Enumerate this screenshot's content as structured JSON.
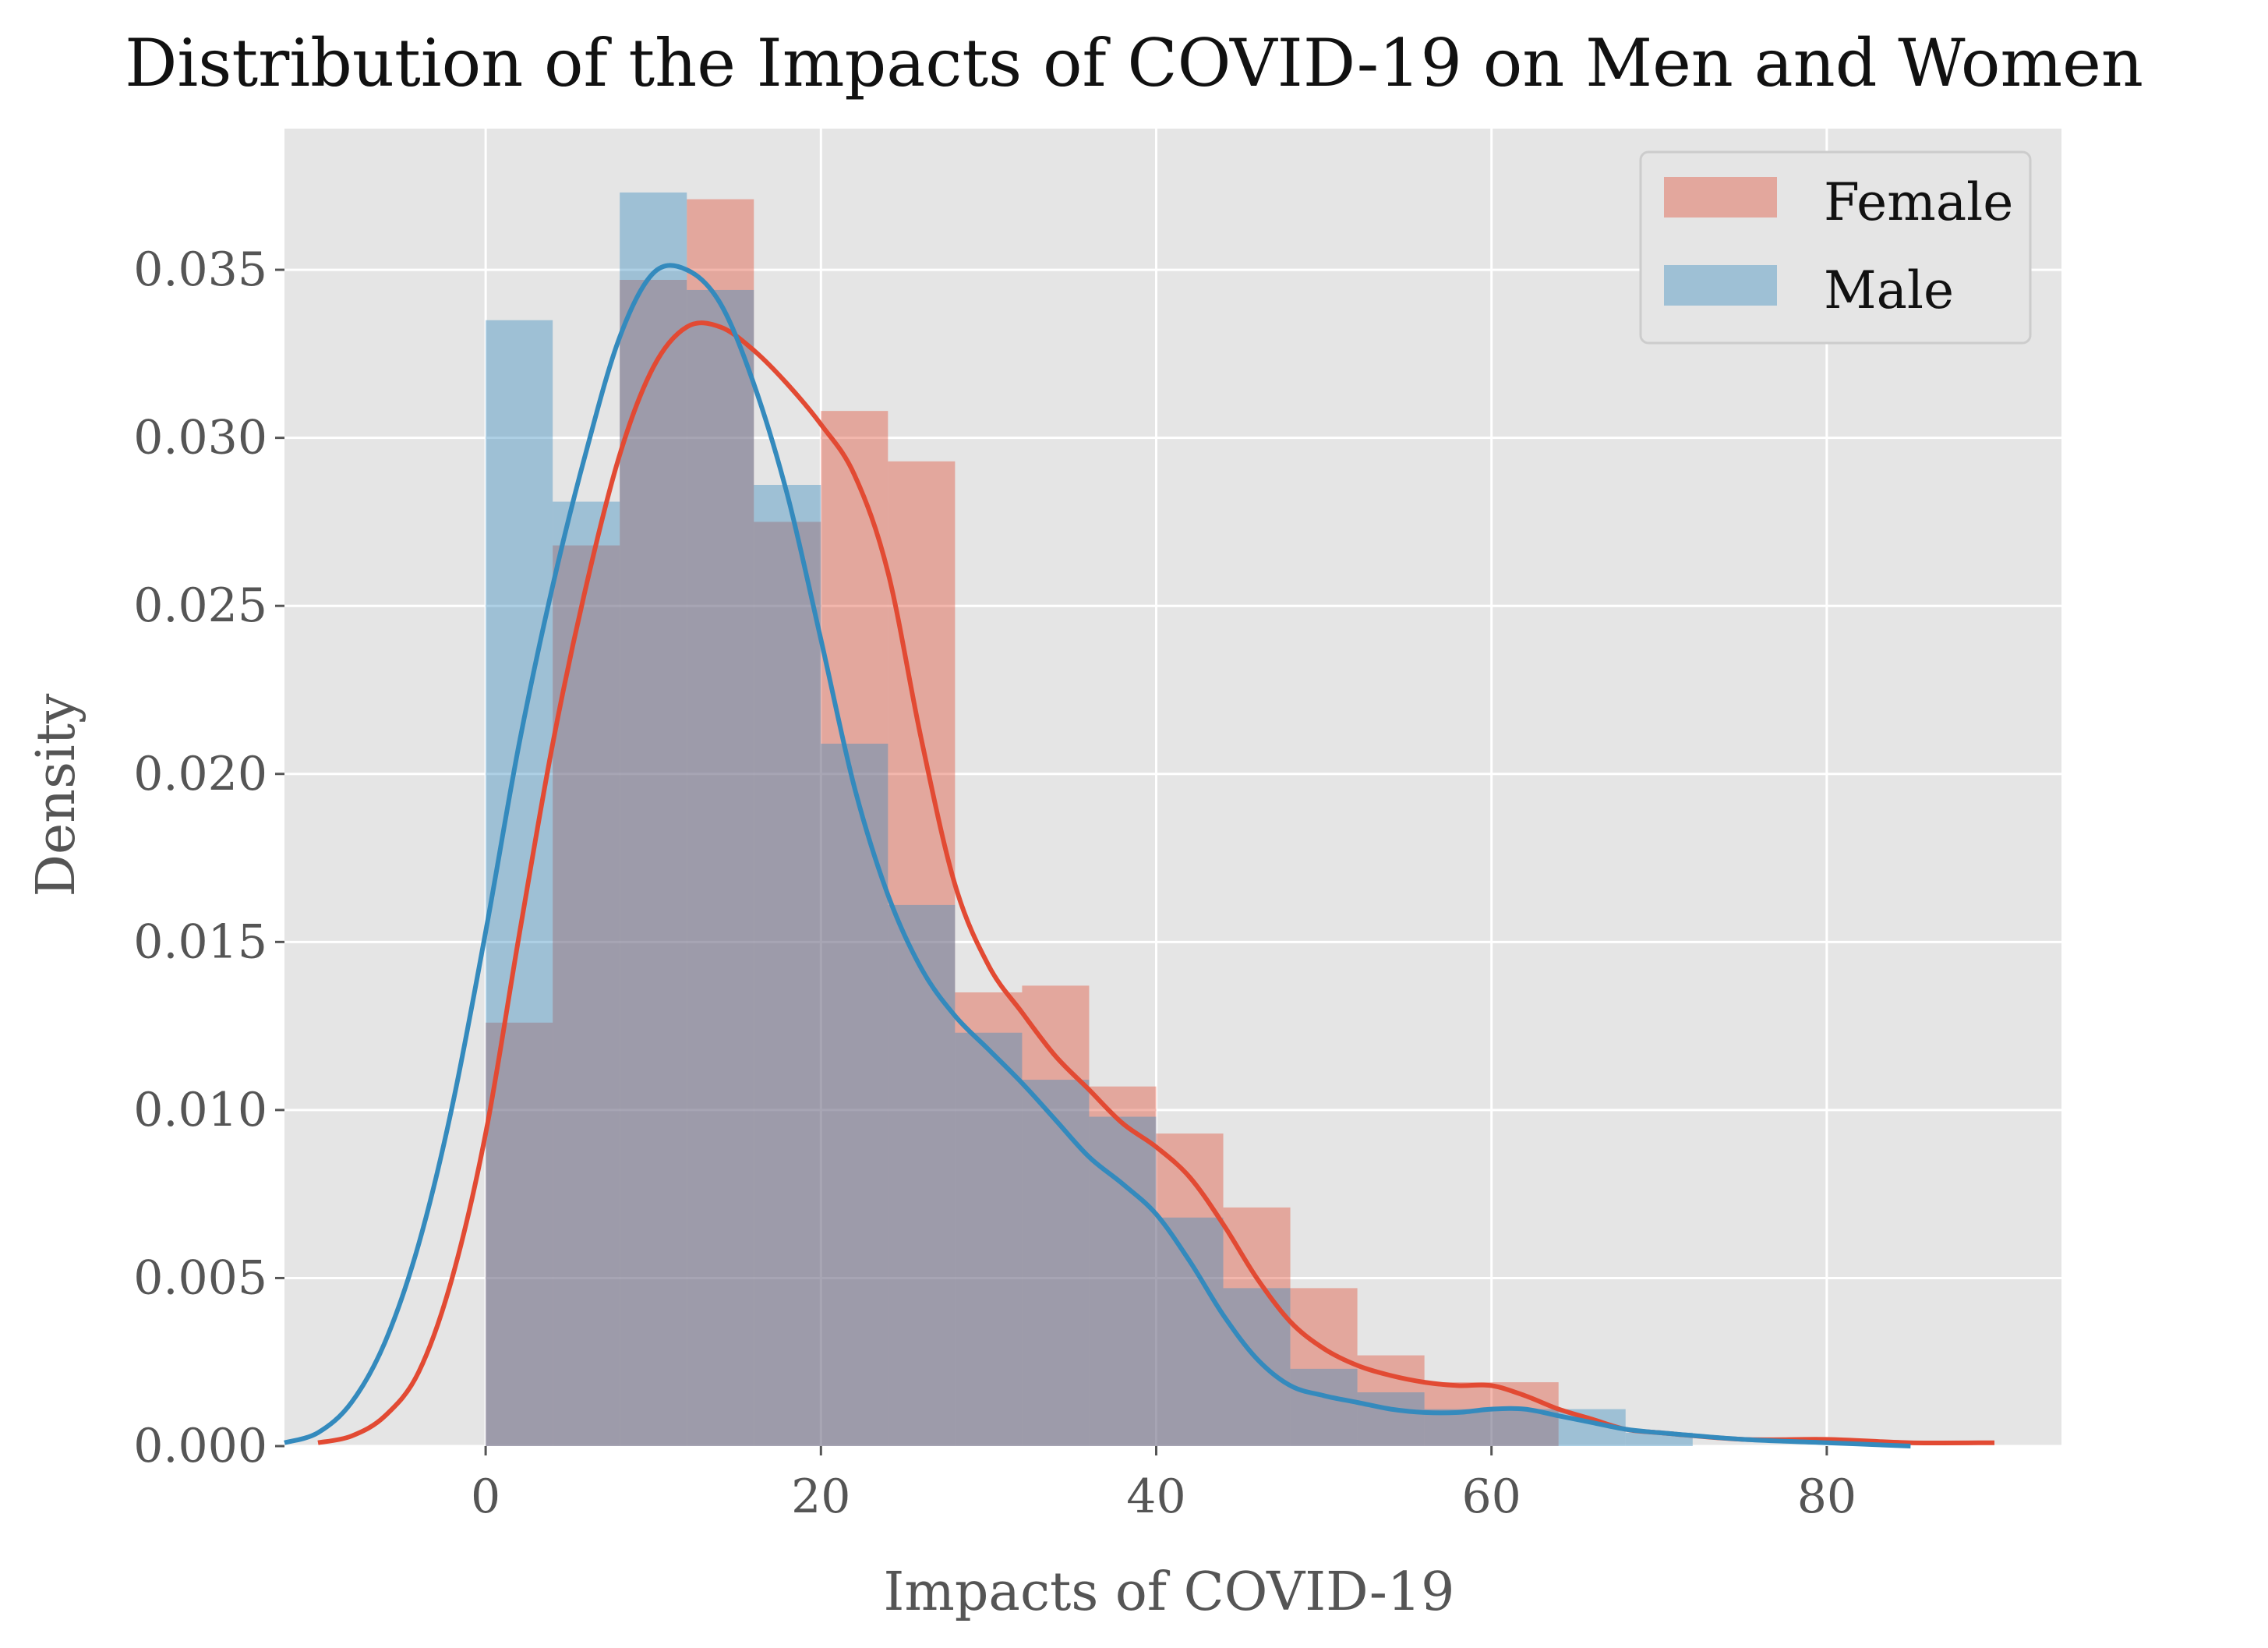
{
  "chart_data": {
    "type": "bar",
    "title": "Distribution of the Impacts of COVID-19 on Men and Women",
    "xlabel": "Impacts of COVID-19",
    "ylabel": "Density",
    "xlim": [
      -12,
      94
    ],
    "ylim": [
      0,
      0.0392
    ],
    "xticks": [
      0,
      20,
      40,
      60,
      80
    ],
    "xtick_labels": [
      "0",
      "20",
      "40",
      "60",
      "80"
    ],
    "yticks": [
      0.0,
      0.005,
      0.01,
      0.015,
      0.02,
      0.025,
      0.03,
      0.035
    ],
    "ytick_labels": [
      "0.000",
      "0.005",
      "0.010",
      "0.015",
      "0.020",
      "0.025",
      "0.030",
      "0.035"
    ],
    "grid": true,
    "legend_position": "top-right",
    "bin_width": 4,
    "series": [
      {
        "name": "Female",
        "color": "#E24A33",
        "hist": {
          "x_start": [
            0,
            4,
            8,
            12,
            16,
            20,
            24,
            28,
            32,
            36,
            40,
            44,
            48,
            52,
            56,
            60
          ],
          "values": [
            0.0126,
            0.0268,
            0.0347,
            0.0371,
            0.0275,
            0.0308,
            0.0293,
            0.0135,
            0.0137,
            0.0107,
            0.0093,
            0.0071,
            0.0047,
            0.0027,
            0.0019,
            0.0019
          ]
        },
        "kde": {
          "x": [
            -10,
            -8,
            -6,
            -4,
            -2,
            0,
            2,
            4,
            6,
            8,
            10,
            12,
            14,
            16,
            18,
            20,
            22,
            24,
            26,
            28,
            30,
            32,
            34,
            36,
            38,
            40,
            42,
            44,
            46,
            48,
            50,
            52,
            54,
            56,
            58,
            60,
            62,
            64,
            66,
            68,
            70,
            75,
            80,
            85,
            90
          ],
          "values": [
            0.0001,
            0.0003,
            0.0009,
            0.0022,
            0.005,
            0.0093,
            0.0152,
            0.0209,
            0.0256,
            0.0295,
            0.0321,
            0.0333,
            0.0333,
            0.0326,
            0.0316,
            0.0304,
            0.0289,
            0.026,
            0.021,
            0.0167,
            0.0143,
            0.0129,
            0.0116,
            0.0106,
            0.0096,
            0.0089,
            0.008,
            0.0066,
            0.005,
            0.0037,
            0.0029,
            0.0024,
            0.0021,
            0.0019,
            0.0018,
            0.0018,
            0.0015,
            0.0011,
            0.0008,
            0.0005,
            0.0004,
            0.0002,
            0.0002,
            0.0001,
            0.0001
          ]
        }
      },
      {
        "name": "Male",
        "color": "#348ABD",
        "hist": {
          "x_start": [
            0,
            4,
            8,
            12,
            16,
            20,
            24,
            28,
            32,
            36,
            40,
            44,
            48,
            52,
            56,
            60,
            64,
            68
          ],
          "values": [
            0.0335,
            0.0281,
            0.0373,
            0.0344,
            0.0286,
            0.0209,
            0.0161,
            0.0123,
            0.0109,
            0.0098,
            0.0068,
            0.0047,
            0.0023,
            0.0016,
            0.0011,
            0.0011,
            0.0011,
            0.0004
          ]
        },
        "kde": {
          "x": [
            -12,
            -10,
            -8,
            -6,
            -4,
            -2,
            0,
            2,
            4,
            6,
            8,
            10,
            12,
            14,
            16,
            18,
            20,
            22,
            24,
            26,
            28,
            30,
            32,
            34,
            36,
            38,
            40,
            42,
            44,
            46,
            48,
            50,
            52,
            54,
            56,
            58,
            60,
            62,
            64,
            66,
            68,
            70,
            75,
            80,
            85
          ],
          "values": [
            0.0001,
            0.0004,
            0.0013,
            0.0031,
            0.006,
            0.0101,
            0.0153,
            0.0209,
            0.0256,
            0.0296,
            0.033,
            0.0349,
            0.035,
            0.034,
            0.0316,
            0.0283,
            0.024,
            0.0196,
            0.0164,
            0.0142,
            0.0128,
            0.0118,
            0.0108,
            0.0097,
            0.0086,
            0.0078,
            0.0069,
            0.0055,
            0.0039,
            0.0026,
            0.0018,
            0.0015,
            0.0013,
            0.0011,
            0.001,
            0.001,
            0.0011,
            0.0011,
            0.0009,
            0.0007,
            0.0005,
            0.0004,
            0.0002,
            0.0001,
            0.0
          ]
        }
      }
    ]
  }
}
